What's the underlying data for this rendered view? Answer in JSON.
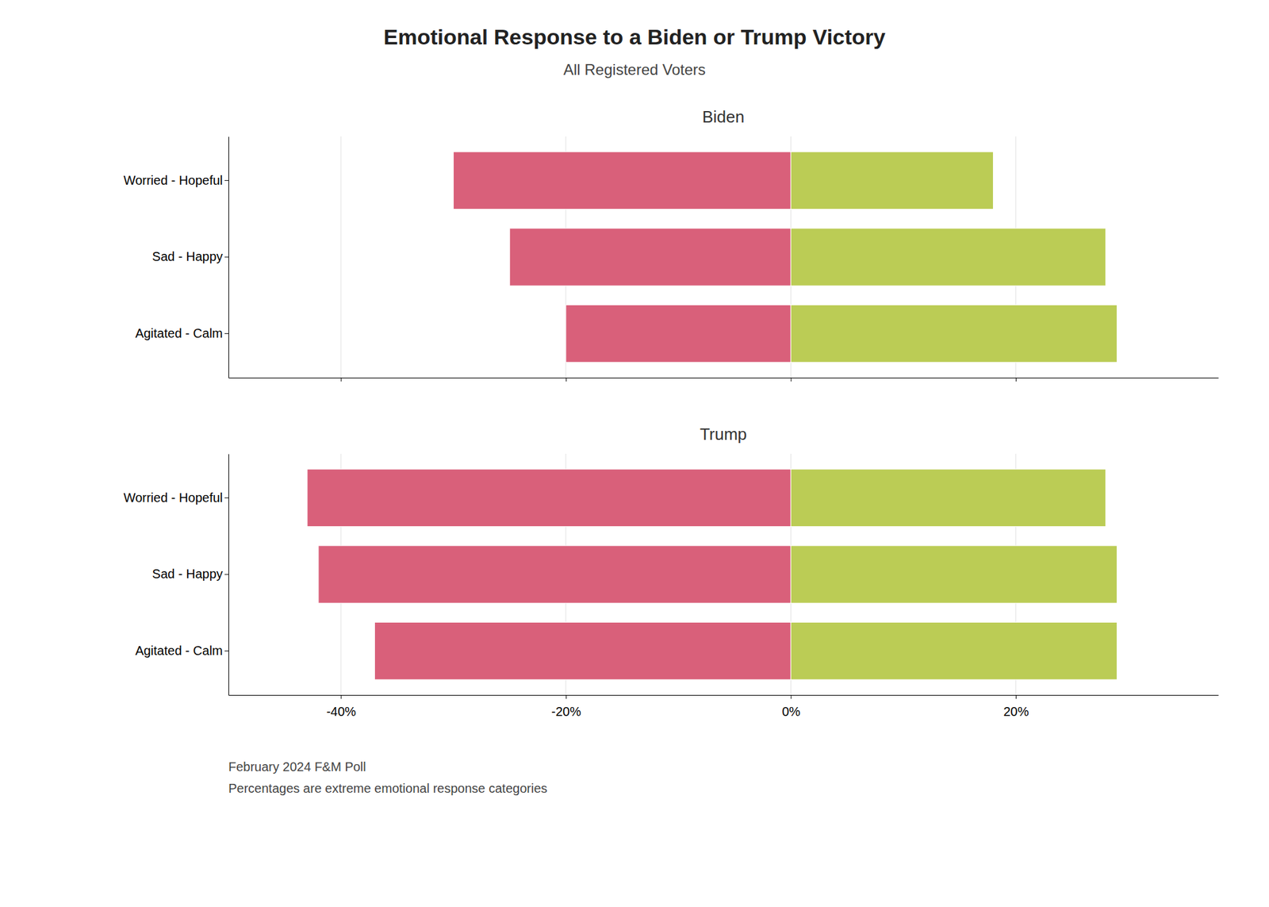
{
  "title": "Emotional Response to a Biden or Trump Victory",
  "subtitle": "All Registered Voters",
  "annotations": [
    "February 2024 F&M Poll",
    "Percentages are extreme emotional response categories"
  ],
  "chart_data": [
    {
      "type": "bar",
      "title": "Biden",
      "orientation": "horizontal",
      "stacked": true,
      "grid": true,
      "tick_labels": "y",
      "categories": [
        "Worried - Hopeful",
        "Sad - Happy",
        "Agitated - Calm"
      ],
      "series": [
        {
          "color": "#D9607A",
          "values": [
            -30,
            -25,
            -20
          ]
        },
        {
          "color": "#BBCC55",
          "values": [
            18,
            28,
            29
          ]
        }
      ],
      "xlim": [
        -50,
        38
      ],
      "xticks": [
        -40,
        -20,
        0,
        20
      ]
    },
    {
      "type": "bar",
      "title": "Trump",
      "orientation": "horizontal",
      "stacked": true,
      "grid": true,
      "categories": [
        "Worried - Hopeful",
        "Sad - Happy",
        "Agitated - Calm"
      ],
      "series": [
        {
          "color": "#D9607A",
          "values": [
            -43,
            -42,
            -37
          ]
        },
        {
          "color": "#BBCC55",
          "values": [
            28,
            29,
            29
          ]
        }
      ],
      "xlim": [
        -50,
        38
      ],
      "xticks": [
        {
          "value": -40,
          "label": "-40%"
        },
        {
          "value": -20,
          "label": "-20%"
        },
        {
          "value": 0,
          "label": "0%"
        },
        {
          "value": 20,
          "label": "20%"
        }
      ]
    }
  ]
}
